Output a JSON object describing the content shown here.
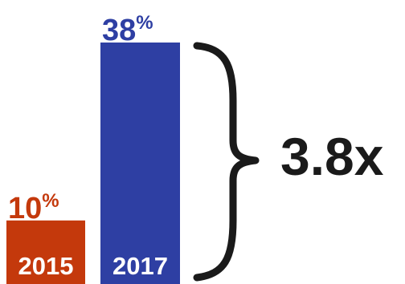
{
  "chart_data": {
    "type": "bar",
    "categories": [
      "2015",
      "2017"
    ],
    "values": [
      10,
      38
    ],
    "value_labels": [
      {
        "number": "10",
        "unit": "%"
      },
      {
        "number": "38",
        "unit": "%"
      }
    ],
    "colors": [
      "#c4390c",
      "#2e3fa3"
    ],
    "annotation": "3.8x",
    "ylim": [
      0,
      38
    ]
  },
  "colors": {
    "text": "#1a1a1a",
    "bar_label": "#ffffff"
  }
}
